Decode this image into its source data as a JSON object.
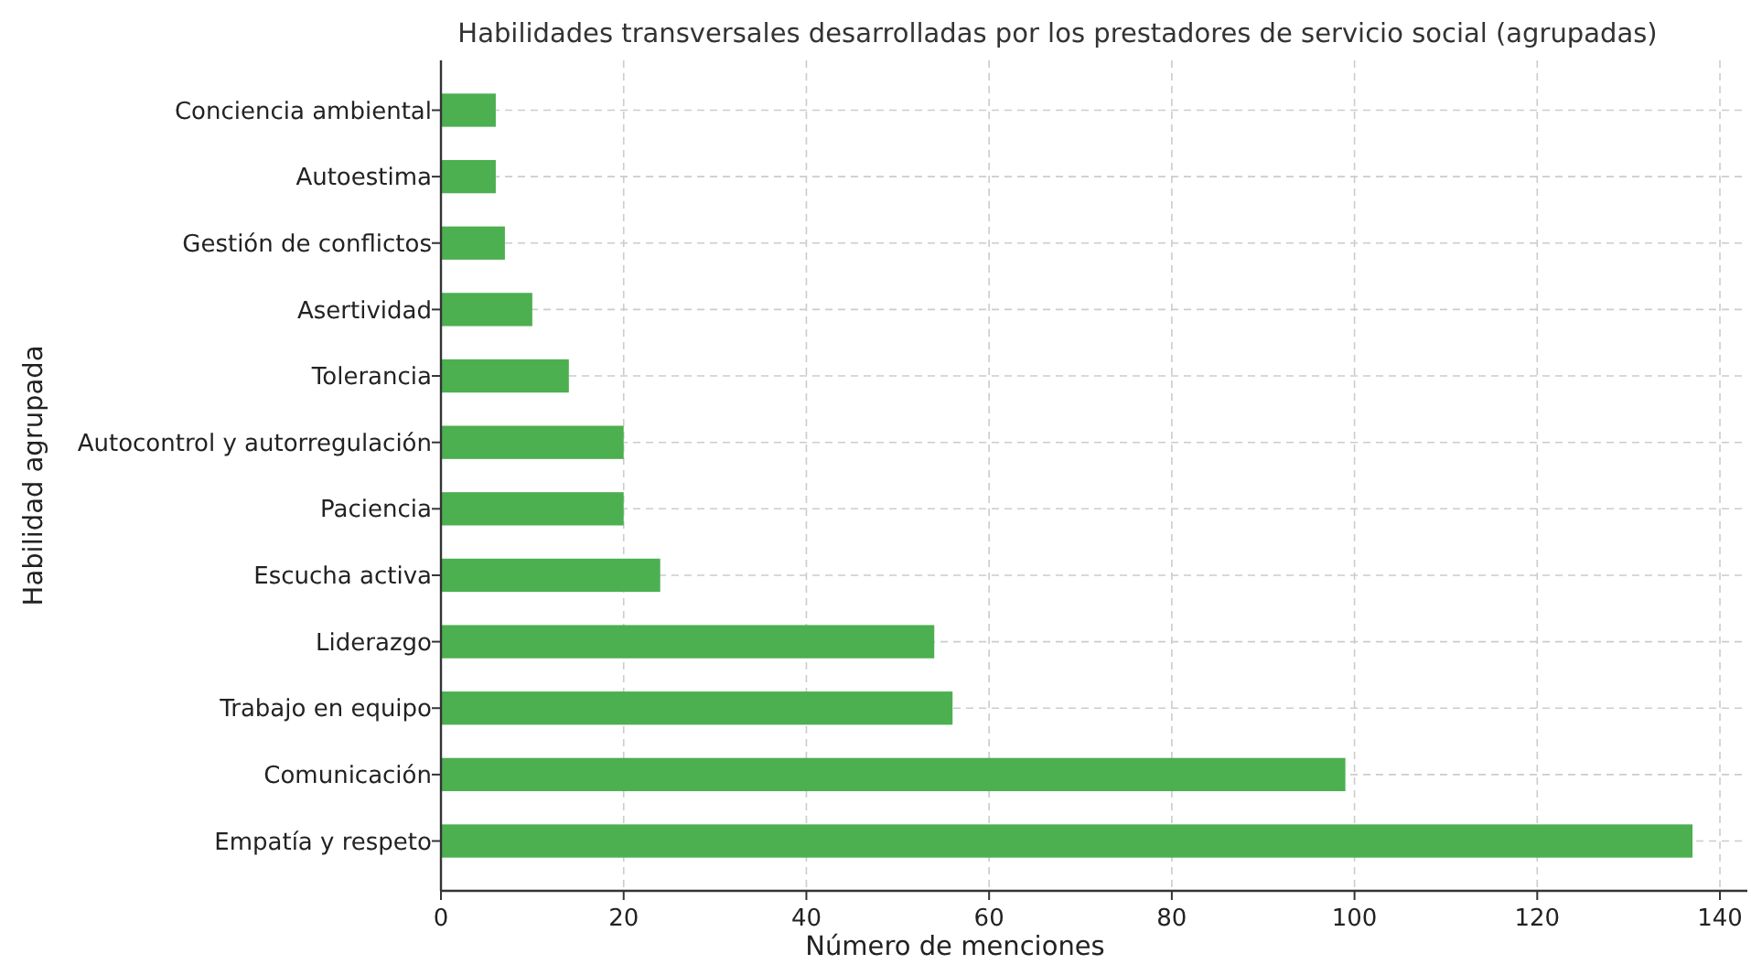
{
  "chart_data": {
    "type": "bar",
    "orientation": "horizontal",
    "title": "Habilidades transversales desarrolladas por los prestadores de servicio social (agrupadas)",
    "xlabel": "Número de menciones",
    "ylabel": "Habilidad agrupada",
    "categories": [
      "Conciencia ambiental",
      "Autoestima",
      "Gestión de conflictos",
      "Asertividad",
      "Tolerancia",
      "Autocontrol y autorregulación",
      "Paciencia",
      "Escucha activa",
      "Liderazgo",
      "Trabajo en equipo",
      "Comunicación",
      "Empatía y respeto"
    ],
    "values": [
      6,
      6,
      7,
      10,
      14,
      20,
      20,
      24,
      54,
      56,
      99,
      137
    ],
    "color": "#4caf50",
    "xlim": [
      0,
      143
    ],
    "xticks": [
      0,
      20,
      40,
      60,
      80,
      100,
      120,
      140
    ],
    "grid": true,
    "line_style": "dashed"
  }
}
